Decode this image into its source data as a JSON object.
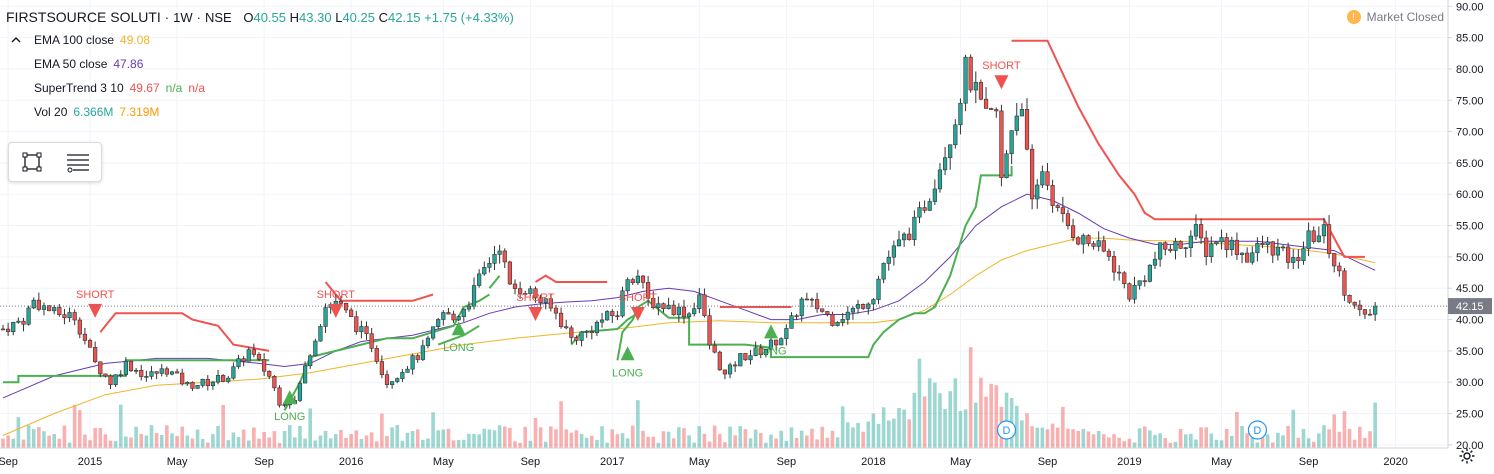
{
  "header": {
    "symbol": "FIRSTSOURCE SOLUTI",
    "interval": "1W",
    "exchange": "NSE",
    "open_label": "O",
    "open": "40.55",
    "high_label": "H",
    "high": "43.30",
    "low_label": "L",
    "low": "40.25",
    "close_label": "C",
    "close": "42.15",
    "change": "+1.75 (+4.33%)"
  },
  "indicators": [
    {
      "name": "EMA 100 close",
      "v1": "49.08",
      "v2": "",
      "v3": "",
      "c1": "#f0b429"
    },
    {
      "name": "EMA 50 close",
      "v1": "47.86",
      "v2": "",
      "v3": "",
      "c1": "#673ab7"
    },
    {
      "name": "SuperTrend 3 10",
      "v1": "49.67",
      "v2": "n/a",
      "v3": "n/a",
      "c1": "#ef5350"
    },
    {
      "name": "Vol 20",
      "v1": "6.366M",
      "v2": "7.319M",
      "v3": "",
      "c1": "#26a69a"
    }
  ],
  "collapse_icon": "chevron-up-icon",
  "toolbox": {
    "icons": [
      "rectangle-select-icon",
      "object-tree-icon"
    ]
  },
  "status": {
    "market": "Market Closed",
    "badge": "!"
  },
  "colors": {
    "up": "#26a69a",
    "down": "#ef5350",
    "ema100": "#f0b429",
    "ema50": "#673ab7",
    "st_up": "#4caf50",
    "st_down": "#ef5350",
    "price_tag": "#787b86"
  },
  "chart_data": {
    "type": "candlestick",
    "title": "FIRSTSOURCE SOLUTI · 1W · NSE",
    "ylim": [
      19.5,
      91
    ],
    "y_ticks": [
      "90.00",
      "85.00",
      "80.00",
      "75.00",
      "70.00",
      "65.00",
      "60.00",
      "55.00",
      "50.00",
      "45.00",
      "40.00",
      "35.00",
      "30.00",
      "25.00",
      "20.00"
    ],
    "x_ticks": [
      {
        "label": "Sep",
        "week": 1
      },
      {
        "label": "2015",
        "week": 17
      },
      {
        "label": "May",
        "week": 34
      },
      {
        "label": "Sep",
        "week": 51
      },
      {
        "label": "2016",
        "week": 68
      },
      {
        "label": "May",
        "week": 86
      },
      {
        "label": "Sep",
        "week": 103
      },
      {
        "label": "2017",
        "week": 119
      },
      {
        "label": "May",
        "week": 136
      },
      {
        "label": "Sep",
        "week": 153
      },
      {
        "label": "2018",
        "week": 170
      },
      {
        "label": "May",
        "week": 187
      },
      {
        "label": "Sep",
        "week": 204
      },
      {
        "label": "2019",
        "week": 220
      },
      {
        "label": "May",
        "week": 238
      },
      {
        "label": "Sep",
        "week": 255
      },
      {
        "label": "2020",
        "week": 272
      }
    ],
    "last_price": "42.15",
    "close_path": [
      [
        0,
        38.5
      ],
      [
        4,
        40
      ],
      [
        6,
        43
      ],
      [
        10,
        41
      ],
      [
        14,
        40.5
      ],
      [
        18,
        33
      ],
      [
        21,
        30
      ],
      [
        24,
        33
      ],
      [
        28,
        31
      ],
      [
        32,
        32
      ],
      [
        36,
        29.5
      ],
      [
        40,
        30
      ],
      [
        44,
        31
      ],
      [
        48,
        35
      ],
      [
        52,
        31
      ],
      [
        54,
        27
      ],
      [
        57,
        27
      ],
      [
        60,
        35
      ],
      [
        63,
        42
      ],
      [
        65,
        43
      ],
      [
        68,
        40
      ],
      [
        72,
        36
      ],
      [
        75,
        30
      ],
      [
        78,
        32
      ],
      [
        82,
        35
      ],
      [
        86,
        41
      ],
      [
        88,
        40
      ],
      [
        91,
        43
      ],
      [
        94,
        48
      ],
      [
        97,
        52
      ],
      [
        99,
        45
      ],
      [
        102,
        45
      ],
      [
        105,
        43
      ],
      [
        108,
        41
      ],
      [
        111,
        37
      ],
      [
        114,
        38
      ],
      [
        117,
        40
      ],
      [
        120,
        41
      ],
      [
        122,
        47
      ],
      [
        124,
        47
      ],
      [
        126,
        43
      ],
      [
        130,
        42
      ],
      [
        134,
        41
      ],
      [
        136,
        44
      ],
      [
        138,
        36
      ],
      [
        141,
        31
      ],
      [
        144,
        34
      ],
      [
        148,
        35
      ],
      [
        150,
        36
      ],
      [
        153,
        38
      ],
      [
        156,
        43
      ],
      [
        159,
        42
      ],
      [
        162,
        40
      ],
      [
        165,
        41
      ],
      [
        167,
        42
      ],
      [
        170,
        44
      ],
      [
        172,
        49
      ],
      [
        175,
        52
      ],
      [
        178,
        55
      ],
      [
        181,
        60
      ],
      [
        184,
        67
      ],
      [
        186,
        72
      ],
      [
        188,
        80
      ],
      [
        190,
        76
      ],
      [
        192,
        72
      ],
      [
        194,
        73
      ],
      [
        195,
        62
      ],
      [
        197,
        71
      ],
      [
        199,
        75
      ],
      [
        200,
        66
      ],
      [
        201,
        58
      ],
      [
        203,
        64
      ],
      [
        206,
        57
      ],
      [
        208,
        55
      ],
      [
        210,
        53
      ],
      [
        213,
        52
      ],
      [
        216,
        50
      ],
      [
        220,
        44
      ],
      [
        223,
        47
      ],
      [
        226,
        51
      ],
      [
        230,
        52
      ],
      [
        233,
        54
      ],
      [
        235,
        51
      ],
      [
        237,
        53
      ],
      [
        240,
        52
      ],
      [
        243,
        50
      ],
      [
        246,
        52
      ],
      [
        249,
        51
      ],
      [
        252,
        49
      ],
      [
        255,
        53
      ],
      [
        258,
        54
      ],
      [
        260,
        49
      ],
      [
        262,
        45
      ],
      [
        264,
        42
      ],
      [
        266,
        40
      ],
      [
        268,
        42.15
      ]
    ],
    "ema50_path": [
      [
        0,
        27.5
      ],
      [
        10,
        31
      ],
      [
        20,
        33
      ],
      [
        30,
        33.8
      ],
      [
        40,
        33.8
      ],
      [
        50,
        33
      ],
      [
        55,
        32.5
      ],
      [
        60,
        33
      ],
      [
        65,
        35
      ],
      [
        70,
        36.5
      ],
      [
        75,
        37
      ],
      [
        80,
        37.5
      ],
      [
        85,
        38.5
      ],
      [
        90,
        39.5
      ],
      [
        95,
        41
      ],
      [
        100,
        42
      ],
      [
        105,
        42.5
      ],
      [
        110,
        42.8
      ],
      [
        115,
        43
      ],
      [
        120,
        43.5
      ],
      [
        125,
        44.5
      ],
      [
        130,
        45
      ],
      [
        135,
        44.5
      ],
      [
        140,
        43
      ],
      [
        145,
        41.5
      ],
      [
        150,
        40
      ],
      [
        155,
        40
      ],
      [
        160,
        40.8
      ],
      [
        165,
        40.8
      ],
      [
        170,
        41.5
      ],
      [
        175,
        43
      ],
      [
        180,
        46
      ],
      [
        185,
        50
      ],
      [
        190,
        55
      ],
      [
        195,
        58
      ],
      [
        200,
        60
      ],
      [
        205,
        59
      ],
      [
        210,
        57
      ],
      [
        215,
        54.5
      ],
      [
        220,
        53
      ],
      [
        225,
        52
      ],
      [
        230,
        52
      ],
      [
        235,
        52.5
      ],
      [
        240,
        52.5
      ],
      [
        245,
        52.5
      ],
      [
        250,
        52
      ],
      [
        255,
        51.5
      ],
      [
        260,
        51
      ],
      [
        265,
        49
      ],
      [
        268,
        47.86
      ]
    ],
    "ema100_path": [
      [
        0,
        21.5
      ],
      [
        10,
        25
      ],
      [
        20,
        28
      ],
      [
        30,
        29.5
      ],
      [
        40,
        30
      ],
      [
        50,
        30.5
      ],
      [
        60,
        31.5
      ],
      [
        70,
        33
      ],
      [
        80,
        34.5
      ],
      [
        90,
        36
      ],
      [
        100,
        37
      ],
      [
        110,
        37.8
      ],
      [
        120,
        38.5
      ],
      [
        130,
        39.5
      ],
      [
        140,
        39.8
      ],
      [
        150,
        39.5
      ],
      [
        160,
        39.5
      ],
      [
        170,
        39.5
      ],
      [
        175,
        40
      ],
      [
        180,
        41.5
      ],
      [
        185,
        44
      ],
      [
        190,
        47
      ],
      [
        195,
        49.5
      ],
      [
        200,
        51
      ],
      [
        205,
        52
      ],
      [
        210,
        53
      ],
      [
        215,
        53
      ],
      [
        220,
        52.7
      ],
      [
        230,
        52.5
      ],
      [
        240,
        52
      ],
      [
        250,
        51.5
      ],
      [
        260,
        50.5
      ],
      [
        268,
        49.08
      ]
    ],
    "supertrend_up": [
      [
        [
          0,
          30
        ],
        [
          3,
          30
        ],
        [
          3,
          31
        ],
        [
          24,
          31
        ],
        [
          24,
          33.5
        ],
        [
          52,
          33.5
        ]
      ],
      [
        [
          55,
          25.5
        ],
        [
          58,
          30
        ],
        [
          60,
          34
        ],
        [
          65,
          35
        ],
        [
          70,
          36
        ],
        [
          75,
          37
        ],
        [
          80,
          37
        ],
        [
          84,
          38
        ],
        [
          88,
          39
        ],
        [
          90,
          42
        ],
        [
          93,
          43
        ],
        [
          95,
          44
        ]
      ],
      [
        [
          95,
          45
        ],
        [
          97,
          47
        ]
      ],
      [
        [
          85,
          36
        ],
        [
          90,
          37.5
        ],
        [
          93,
          39
        ]
      ],
      [
        [
          111,
          36
        ],
        [
          113,
          38
        ],
        [
          120,
          38.5
        ],
        [
          122,
          40
        ],
        [
          124,
          41
        ]
      ],
      [
        [
          120,
          33.5
        ],
        [
          121,
          38
        ],
        [
          123,
          40
        ],
        [
          124,
          42
        ],
        [
          126,
          43
        ],
        [
          130,
          40.3
        ],
        [
          134,
          40.3
        ]
      ],
      [
        [
          134,
          40.3
        ],
        [
          134,
          36
        ],
        [
          138,
          36
        ],
        [
          145,
          36
        ],
        [
          150,
          35.5
        ],
        [
          150,
          34
        ],
        [
          165,
          34
        ],
        [
          169,
          34
        ],
        [
          170,
          36
        ],
        [
          172,
          38
        ],
        [
          175,
          40
        ],
        [
          178,
          41
        ],
        [
          180,
          41
        ],
        [
          182,
          42
        ],
        [
          185,
          47
        ],
        [
          188,
          55
        ],
        [
          190,
          58
        ],
        [
          191,
          63
        ],
        [
          197,
          63
        ],
        [
          197,
          64.5
        ]
      ]
    ],
    "supertrend_down": [
      [
        [
          19,
          38
        ],
        [
          22,
          41
        ],
        [
          35,
          41
        ],
        [
          37,
          40
        ],
        [
          42,
          39
        ],
        [
          45,
          36
        ],
        [
          52,
          35
        ]
      ],
      [
        [
          63,
          46
        ],
        [
          66,
          43
        ],
        [
          80,
          43
        ],
        [
          84,
          44
        ]
      ],
      [
        [
          104,
          46
        ],
        [
          106,
          47
        ],
        [
          108,
          46
        ],
        [
          118,
          46
        ]
      ],
      [
        [
          140,
          42
        ],
        [
          154,
          42
        ]
      ],
      [
        [
          197,
          84.5
        ],
        [
          204,
          84.5
        ],
        [
          206,
          81
        ],
        [
          210,
          74
        ],
        [
          214,
          68
        ],
        [
          218,
          63
        ],
        [
          221,
          60
        ],
        [
          223,
          57
        ],
        [
          225,
          56
        ],
        [
          245,
          56
        ],
        [
          258,
          56
        ],
        [
          260,
          53
        ],
        [
          262,
          50
        ],
        [
          266,
          50
        ]
      ]
    ],
    "signals": [
      {
        "label": "SHORT",
        "week": 18,
        "price": 42.5,
        "dir": "short"
      },
      {
        "label": "LONG",
        "week": 56,
        "price": 26.5,
        "dir": "long"
      },
      {
        "label": "SHORT",
        "week": 65,
        "price": 42.5,
        "dir": "short"
      },
      {
        "label": "LONG",
        "week": 89,
        "price": 37.5,
        "dir": "long"
      },
      {
        "label": "SHORT",
        "week": 104,
        "price": 42,
        "dir": "short"
      },
      {
        "label": "LONG",
        "week": 122,
        "price": 33.5,
        "dir": "long"
      },
      {
        "label": "SHORT",
        "week": 124,
        "price": 42,
        "dir": "short"
      },
      {
        "label": "LONG",
        "week": 150,
        "price": 37,
        "dir": "long"
      },
      {
        "label": "SHORT",
        "week": 195,
        "price": 79,
        "dir": "short"
      }
    ],
    "dividend_markers": [
      {
        "label": "D",
        "week": 196
      },
      {
        "label": "D",
        "week": 245
      }
    ],
    "volume_max_week": 187
  }
}
